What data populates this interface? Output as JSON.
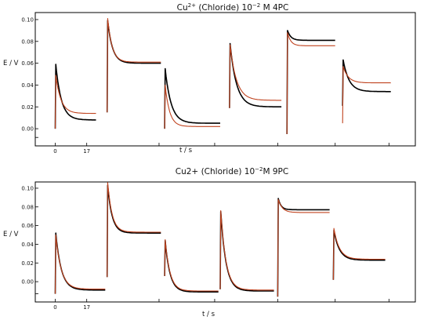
{
  "chart_data": [
    {
      "type": "line",
      "title_parts": [
        "Cu",
        "2+",
        " (Chloride) 10",
        "−2",
        " M  4PC"
      ],
      "xlabel": "t / s",
      "ylabel": "E / V",
      "x_tick_labels": [
        "0",
        "17"
      ],
      "y_tick_labels": [
        "0.00",
        "0.02",
        "0.04",
        "0.06",
        "0.08",
        "0.10"
      ],
      "ylim": [
        -0.01,
        0.105
      ],
      "xlim": [
        -4,
        190
      ],
      "grid": false,
      "colors": {
        "black": "#000000",
        "red": "#c0431f"
      },
      "series": [
        {
          "color": "black",
          "pulses": [
            {
              "start": 0,
              "end": 22,
              "base": 0.0,
              "peak": 0.059,
              "final": 0.008,
              "tau": 3.0
            },
            {
              "start": 28,
              "end": 57,
              "base": 0.015,
              "peak": 0.099,
              "final": 0.06,
              "tau": 2.6
            },
            {
              "start": 59,
              "end": 89,
              "base": 0.0,
              "peak": 0.055,
              "final": 0.005,
              "tau": 3.2
            },
            {
              "start": 94,
              "end": 122,
              "base": 0.019,
              "peak": 0.078,
              "final": 0.02,
              "tau": 3.5
            },
            {
              "start": 125,
              "end": 151,
              "base": -0.005,
              "peak": 0.09,
              "final": 0.081,
              "tau": 1.8
            },
            {
              "start": 155,
              "end": 181,
              "base": 0.021,
              "peak": 0.063,
              "final": 0.034,
              "tau": 3.2
            }
          ]
        },
        {
          "color": "red",
          "pulses": [
            {
              "start": 0,
              "end": 22,
              "base": 0.0,
              "peak": 0.049,
              "final": 0.014,
              "tau": 2.8
            },
            {
              "start": 28,
              "end": 57,
              "base": 0.015,
              "peak": 0.101,
              "final": 0.061,
              "tau": 2.4
            },
            {
              "start": 59,
              "end": 89,
              "base": 0.0,
              "peak": 0.04,
              "final": 0.002,
              "tau": 2.4
            },
            {
              "start": 94,
              "end": 122,
              "base": 0.019,
              "peak": 0.077,
              "final": 0.026,
              "tau": 3.5
            },
            {
              "start": 125,
              "end": 151,
              "base": -0.005,
              "peak": 0.088,
              "final": 0.076,
              "tau": 1.8
            },
            {
              "start": 155,
              "end": 181,
              "base": 0.005,
              "peak": 0.057,
              "final": 0.042,
              "tau": 2.8
            }
          ]
        }
      ]
    },
    {
      "type": "line",
      "title_parts": [
        "Cu2+ (Chloride) 10",
        "−2",
        "M 9PC"
      ],
      "xlabel": "t / s",
      "ylabel": "E / V",
      "x_tick_labels": [
        "0",
        "17"
      ],
      "y_tick_labels": [
        "0.00",
        "0.02",
        "0.04",
        "0.06",
        "0.08",
        "0.10"
      ],
      "ylim": [
        -0.015,
        0.105
      ],
      "xlim": [
        -4,
        190
      ],
      "grid": false,
      "colors": {
        "black": "#000000",
        "red": "#c0431f"
      },
      "series": [
        {
          "color": "black",
          "pulses": [
            {
              "start": 0,
              "end": 27,
              "base": -0.013,
              "peak": 0.052,
              "final": -0.009,
              "tau": 3.0
            },
            {
              "start": 28,
              "end": 57,
              "base": 0.005,
              "peak": 0.103,
              "final": 0.052,
              "tau": 2.4
            },
            {
              "start": 59,
              "end": 88,
              "base": 0.006,
              "peak": 0.044,
              "final": -0.011,
              "tau": 2.6
            },
            {
              "start": 89,
              "end": 118,
              "base": -0.008,
              "peak": 0.075,
              "final": -0.01,
              "tau": 2.8
            },
            {
              "start": 120,
              "end": 148,
              "base": -0.016,
              "peak": 0.089,
              "final": 0.077,
              "tau": 1.5
            },
            {
              "start": 150,
              "end": 178,
              "base": 0.002,
              "peak": 0.055,
              "final": 0.023,
              "tau": 3.0
            }
          ]
        },
        {
          "color": "red",
          "pulses": [
            {
              "start": 0,
              "end": 27,
              "base": -0.013,
              "peak": 0.05,
              "final": -0.008,
              "tau": 3.0
            },
            {
              "start": 28,
              "end": 57,
              "base": 0.005,
              "peak": 0.106,
              "final": 0.053,
              "tau": 2.4
            },
            {
              "start": 59,
              "end": 88,
              "base": 0.006,
              "peak": 0.045,
              "final": -0.01,
              "tau": 2.6
            },
            {
              "start": 89,
              "end": 118,
              "base": -0.008,
              "peak": 0.076,
              "final": -0.009,
              "tau": 2.8
            },
            {
              "start": 120,
              "end": 148,
              "base": -0.016,
              "peak": 0.088,
              "final": 0.074,
              "tau": 2.2
            },
            {
              "start": 150,
              "end": 178,
              "base": 0.002,
              "peak": 0.057,
              "final": 0.024,
              "tau": 3.0
            }
          ]
        }
      ]
    }
  ]
}
